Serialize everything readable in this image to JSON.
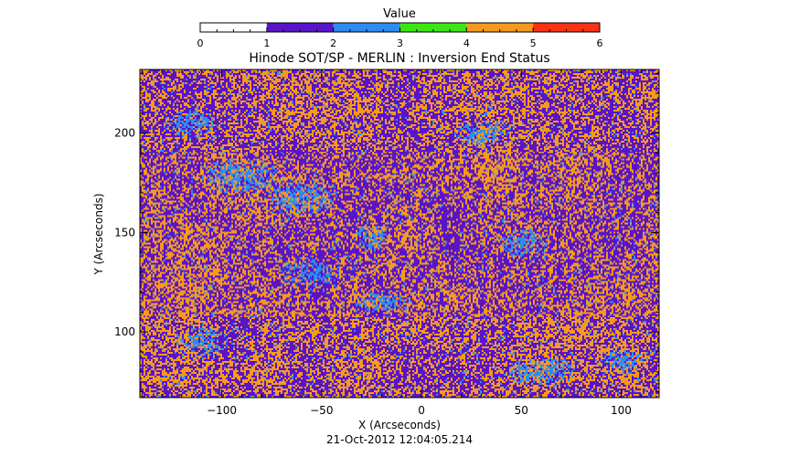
{
  "chart_data": {
    "type": "heatmap",
    "title": "Hinode SOT/SP - MERLIN : Inversion End Status",
    "xlabel": "X (Arcseconds)",
    "ylabel": "Y (Arcseconds)",
    "xlim": [
      -141,
      119
    ],
    "ylim": [
      67,
      232
    ],
    "xticks": [
      -100,
      -50,
      0,
      50,
      100
    ],
    "yticks": [
      100,
      150,
      200
    ],
    "timestamp": "21-Oct-2012 12:04:05.214",
    "colorbar": {
      "title": "Value",
      "range": [
        0,
        6
      ],
      "ticks": [
        0,
        1,
        2,
        3,
        4,
        5,
        6
      ],
      "bins": [
        {
          "from": 0,
          "to": 1,
          "color": "#ffffff"
        },
        {
          "from": 1,
          "to": 2,
          "color": "#5a14c8"
        },
        {
          "from": 2,
          "to": 3,
          "color": "#2e8cf0"
        },
        {
          "from": 3,
          "to": 4,
          "color": "#3ce614"
        },
        {
          "from": 4,
          "to": 5,
          "color": "#f59a1e"
        },
        {
          "from": 5,
          "to": 6,
          "color": "#fa3214"
        }
      ]
    },
    "dominant_values": [
      1,
      2,
      4
    ],
    "blue_regions": [
      {
        "x": -55,
        "y": 130,
        "rx": 18,
        "ry": 8
      },
      {
        "x": -25,
        "y": 148,
        "rx": 10,
        "ry": 8
      },
      {
        "x": -90,
        "y": 178,
        "rx": 22,
        "ry": 10
      },
      {
        "x": -60,
        "y": 168,
        "rx": 20,
        "ry": 10
      },
      {
        "x": -115,
        "y": 205,
        "rx": 15,
        "ry": 8
      },
      {
        "x": 60,
        "y": 80,
        "rx": 20,
        "ry": 8
      },
      {
        "x": 100,
        "y": 85,
        "rx": 12,
        "ry": 7
      },
      {
        "x": 50,
        "y": 145,
        "rx": 15,
        "ry": 8
      },
      {
        "x": -110,
        "y": 95,
        "rx": 14,
        "ry": 8
      },
      {
        "x": -20,
        "y": 115,
        "rx": 14,
        "ry": 6
      },
      {
        "x": 30,
        "y": 200,
        "rx": 14,
        "ry": 7
      }
    ],
    "orange_spots": [
      {
        "x": -25,
        "y": 150,
        "rx": 5,
        "ry": 5
      }
    ]
  }
}
